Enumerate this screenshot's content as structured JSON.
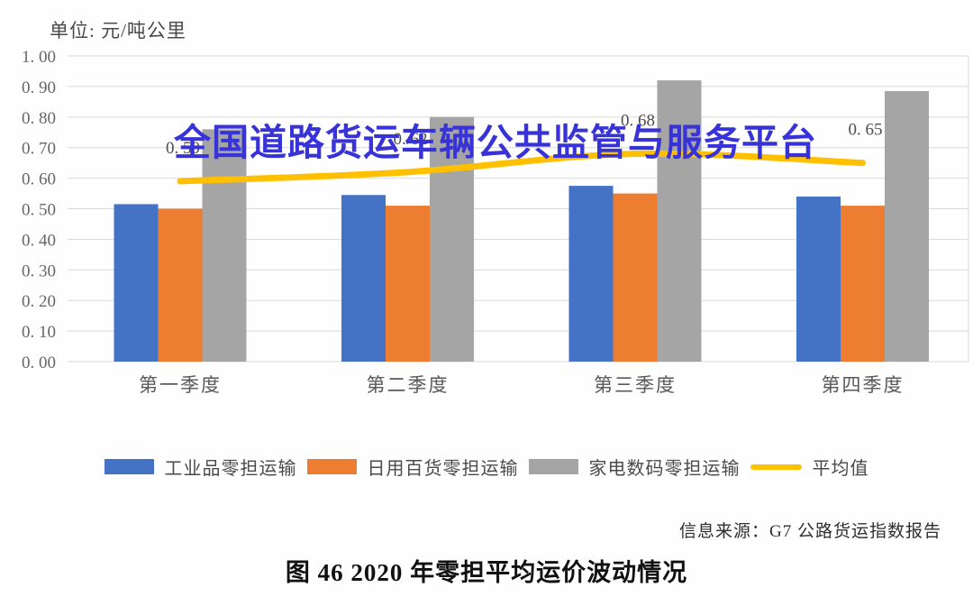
{
  "watermark": {
    "text": "全国道路货运车辆公共监管与服务平台",
    "color": "#3733d6"
  },
  "chart_data": {
    "type": "bar",
    "title": "图 46  2020 年零担平均运价波动情况",
    "unit_label": "单位: 元/吨公里",
    "source_note": "信息来源：G7 公路货运指数报告",
    "categories": [
      "第一季度",
      "第二季度",
      "第三季度",
      "第四季度"
    ],
    "series": [
      {
        "name": "工业品零担运输",
        "type": "bar",
        "color": "#4472C4",
        "values": [
          0.515,
          0.545,
          0.575,
          0.54
        ]
      },
      {
        "name": "日用百货零担运输",
        "type": "bar",
        "color": "#ED7D31",
        "values": [
          0.5,
          0.51,
          0.55,
          0.51
        ]
      },
      {
        "name": "家电数码零担运输",
        "type": "bar",
        "color": "#A5A5A5",
        "values": [
          0.76,
          0.8,
          0.92,
          0.885
        ]
      },
      {
        "name": "平均值",
        "type": "line",
        "color": "#FFC000",
        "values": [
          0.59,
          0.62,
          0.68,
          0.65
        ],
        "point_labels": [
          "0. 59",
          "0. 62",
          "0. 68",
          "0. 65"
        ]
      }
    ],
    "ylim": [
      0,
      1
    ],
    "y_ticks": [
      {
        "label": "1. 00",
        "value": 1.0
      },
      {
        "label": "0. 90",
        "value": 0.9
      },
      {
        "label": "0. 80",
        "value": 0.8
      },
      {
        "label": "0. 70",
        "value": 0.7
      },
      {
        "label": "0. 60",
        "value": 0.6
      },
      {
        "label": "0. 50",
        "value": 0.5
      },
      {
        "label": "0. 40",
        "value": 0.4
      },
      {
        "label": "0. 30",
        "value": 0.3
      },
      {
        "label": "0. 20",
        "value": 0.2
      },
      {
        "label": "0. 10",
        "value": 0.1
      },
      {
        "label": "0. 00",
        "value": 0.0
      }
    ],
    "grid": true,
    "legend_position": "bottom",
    "grid_color": "#d9d9d9",
    "tick_color": "#666666",
    "point_label_color": "#4d4d4d"
  }
}
